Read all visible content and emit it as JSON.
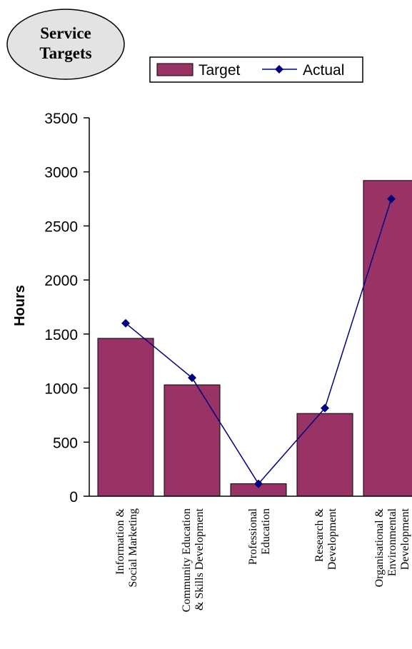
{
  "title_lines": [
    "Service",
    "Targets"
  ],
  "legend": {
    "target_label": "Target",
    "actual_label": "Actual"
  },
  "chart_data": {
    "type": "bar",
    "categories": [
      [
        "Information &",
        "Social Marketing"
      ],
      [
        "Community Education",
        "& Skills Development"
      ],
      [
        "Professional",
        "Education"
      ],
      [
        "Research &",
        "Development"
      ],
      [
        "Organisational &",
        "Environmental",
        "Development"
      ]
    ],
    "series": [
      {
        "name": "Target",
        "type": "bar",
        "values": [
          1460,
          1030,
          115,
          765,
          2920
        ]
      },
      {
        "name": "Actual",
        "type": "line",
        "values": [
          1600,
          1095,
          115,
          815,
          2750
        ]
      }
    ],
    "ylabel": "Hours",
    "ylim": [
      0,
      3500
    ],
    "yticks": [
      0,
      500,
      1000,
      1500,
      2000,
      2500,
      3000,
      3500
    ],
    "colors": {
      "bar_fill": "#993366",
      "line": "#000080",
      "marker": "#000080"
    },
    "grid": false,
    "legend_position": "top-right"
  }
}
